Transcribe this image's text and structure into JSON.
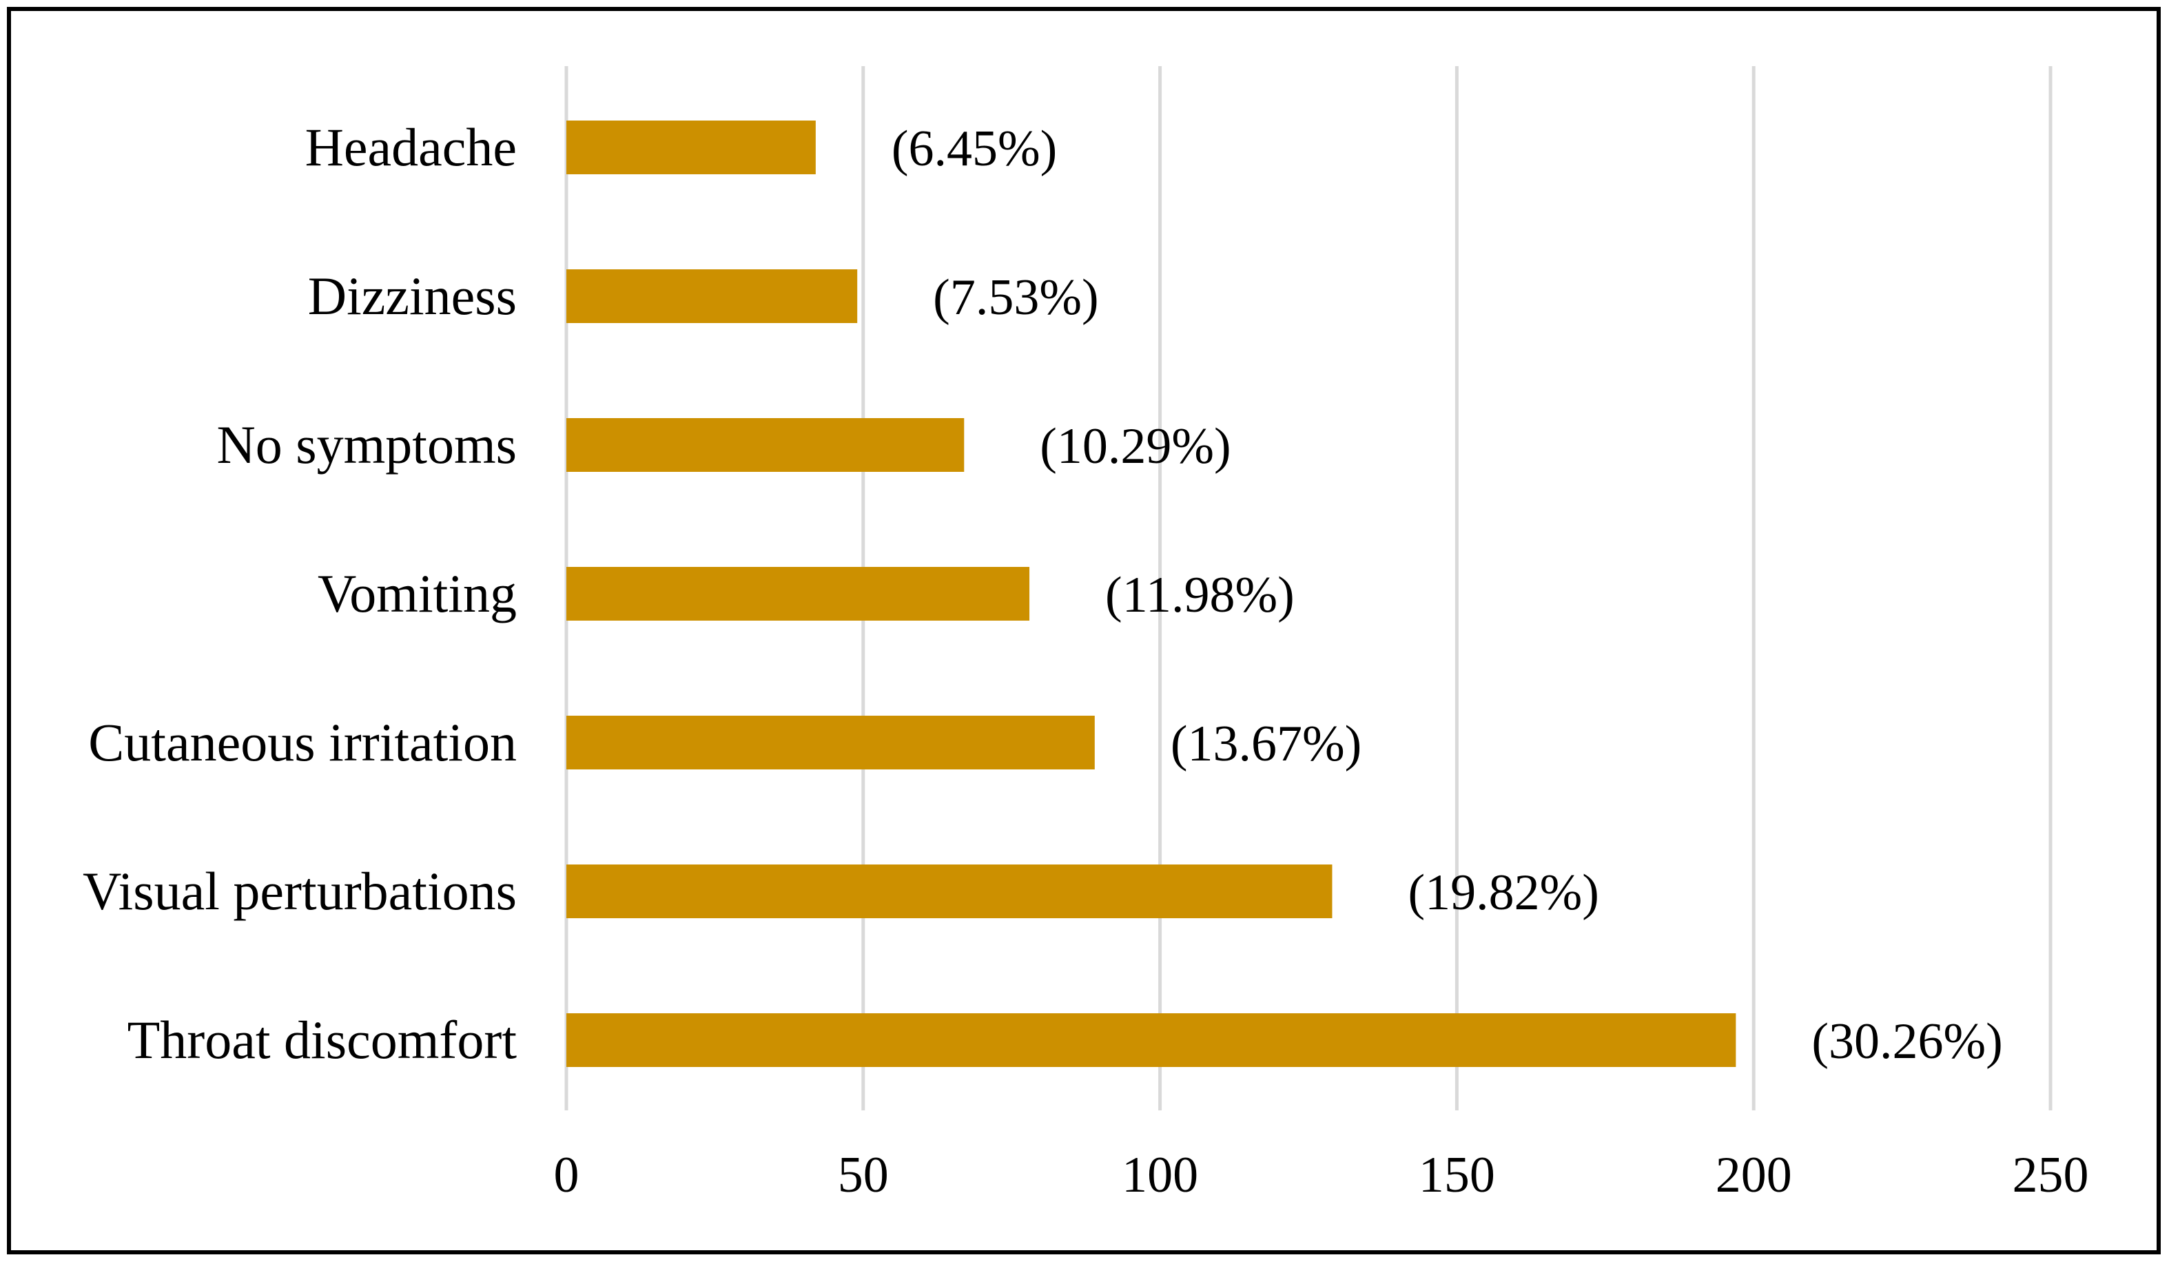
{
  "chart_data": {
    "type": "bar",
    "orientation": "horizontal",
    "categories": [
      "Headache",
      "Dizziness",
      "No symptoms",
      "Vomiting",
      "Cutaneous irritation",
      "Visual perturbations",
      "Throat discomfort"
    ],
    "values": [
      42,
      49,
      67,
      78,
      89,
      129,
      197
    ],
    "data_labels": [
      "(6.45%)",
      "(7.53%)",
      "(10.29%)",
      "(11.98%)",
      "(13.67%)",
      "(19.82%)",
      "(30.26%)"
    ],
    "xlim": [
      0,
      250
    ],
    "xticks": [
      0,
      50,
      100,
      150,
      200,
      250
    ],
    "xtick_labels": [
      "0",
      "50",
      "100",
      "150",
      "200",
      "250"
    ],
    "grid": "vertical",
    "legend": "none",
    "title": "",
    "xlabel": "",
    "ylabel": "",
    "colors": {
      "bar": "#CC9000",
      "grid": "#D9D9D9",
      "text": "#000000",
      "frame": "#000000"
    }
  }
}
